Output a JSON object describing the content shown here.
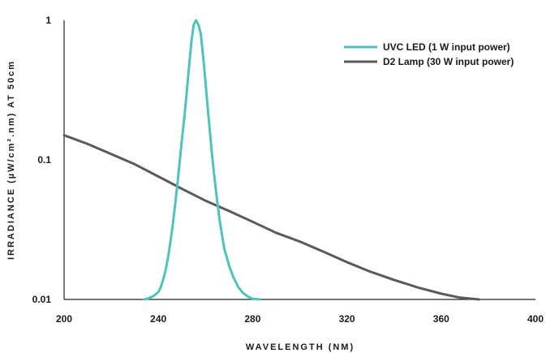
{
  "chart_data": {
    "type": "line",
    "title": "",
    "xlabel": "WAVELENGTH (NM)",
    "ylabel": "IRRADIANCE (µW/cm².nm) AT 50cm",
    "xlim": [
      200,
      400
    ],
    "ylim": [
      0.01,
      1
    ],
    "yscale": "log",
    "x_ticks": [
      200,
      240,
      280,
      320,
      360,
      400
    ],
    "x_tick_labels": [
      "200",
      "240",
      "280",
      "320",
      "360",
      "400"
    ],
    "y_ticks": [
      0.01,
      0.1,
      1
    ],
    "y_tick_labels": [
      "0.01",
      "0.1",
      "1"
    ],
    "grid": false,
    "legend_position": "top-right",
    "series": [
      {
        "name": "UVC LED (1 W input power)",
        "color": "#4fc3b8",
        "points": [
          [
            234,
            0.01
          ],
          [
            236,
            0.0102
          ],
          [
            238,
            0.0106
          ],
          [
            240,
            0.0113
          ],
          [
            241,
            0.0122
          ],
          [
            242,
            0.0138
          ],
          [
            243,
            0.016
          ],
          [
            244,
            0.0195
          ],
          [
            245,
            0.025
          ],
          [
            246,
            0.033
          ],
          [
            247,
            0.046
          ],
          [
            248,
            0.065
          ],
          [
            249,
            0.095
          ],
          [
            250,
            0.14
          ],
          [
            251,
            0.2
          ],
          [
            252,
            0.3
          ],
          [
            253,
            0.46
          ],
          [
            254,
            0.7
          ],
          [
            255,
            0.93
          ],
          [
            256,
            1.0
          ],
          [
            257,
            0.93
          ],
          [
            258,
            0.8
          ],
          [
            259,
            0.55
          ],
          [
            260,
            0.36
          ],
          [
            261,
            0.23
          ],
          [
            262,
            0.15
          ],
          [
            263,
            0.1
          ],
          [
            264,
            0.07
          ],
          [
            265,
            0.05
          ],
          [
            266,
            0.037
          ],
          [
            267,
            0.029
          ],
          [
            268,
            0.023
          ],
          [
            270,
            0.0175
          ],
          [
            272,
            0.0142
          ],
          [
            274,
            0.0122
          ],
          [
            276,
            0.0111
          ],
          [
            278,
            0.0105
          ],
          [
            280,
            0.0101
          ],
          [
            283,
            0.01
          ]
        ]
      },
      {
        "name": "D2 Lamp (30 W input power)",
        "color": "#5a5a5a",
        "points": [
          [
            200,
            0.15
          ],
          [
            210,
            0.13
          ],
          [
            220,
            0.11
          ],
          [
            230,
            0.093
          ],
          [
            240,
            0.076
          ],
          [
            250,
            0.062
          ],
          [
            260,
            0.051
          ],
          [
            270,
            0.043
          ],
          [
            280,
            0.036
          ],
          [
            290,
            0.03
          ],
          [
            300,
            0.026
          ],
          [
            310,
            0.022
          ],
          [
            320,
            0.0185
          ],
          [
            330,
            0.0158
          ],
          [
            340,
            0.0138
          ],
          [
            350,
            0.0122
          ],
          [
            360,
            0.011
          ],
          [
            368,
            0.0103
          ],
          [
            376,
            0.01
          ]
        ]
      }
    ]
  }
}
